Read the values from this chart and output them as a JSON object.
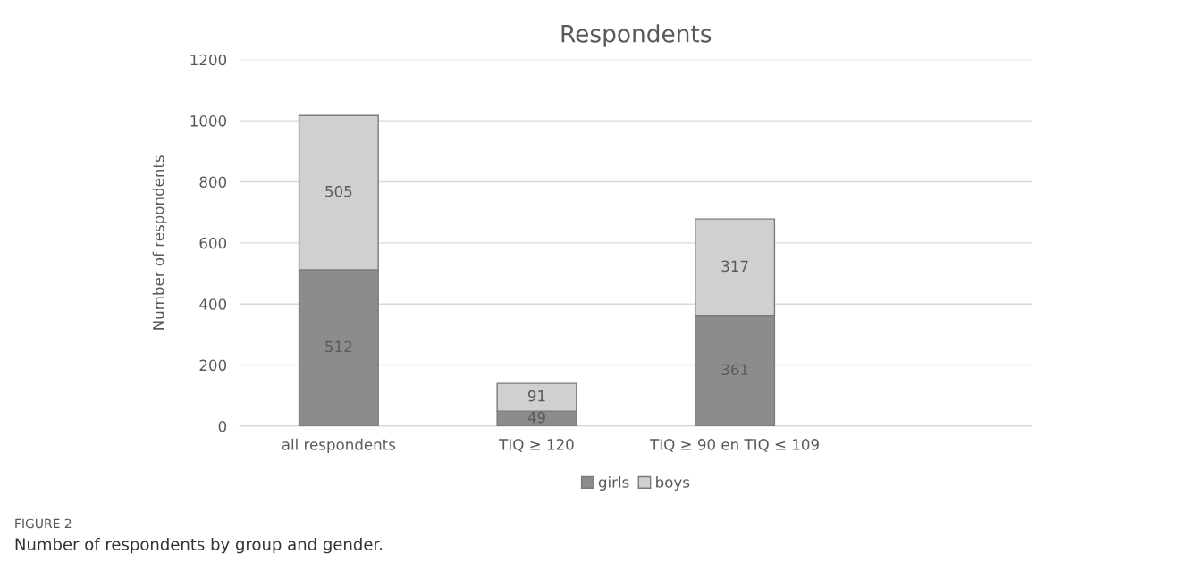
{
  "chart_data": {
    "type": "bar",
    "title": "Respondents",
    "ylabel": "Number of respondents",
    "categories": [
      "all respondents",
      "TIQ ≥ 120",
      "TIQ ≥ 90 en TIQ ≤ 109",
      null
    ],
    "series": [
      {
        "name": "girls",
        "color": "#8c8c8c",
        "values": [
          512,
          49,
          361,
          null
        ]
      },
      {
        "name": "boys",
        "color": "#d0d0d0",
        "values": [
          505,
          91,
          317,
          null
        ]
      }
    ],
    "stacked": true,
    "data_labels": true,
    "ylim": [
      0,
      1200
    ],
    "yticks": [
      0,
      200,
      400,
      600,
      800,
      1000,
      1200
    ],
    "grid": "y",
    "legend": "bottom",
    "annotations": [
      "FIGURE 2",
      "Number of respondents by group and gender."
    ]
  }
}
